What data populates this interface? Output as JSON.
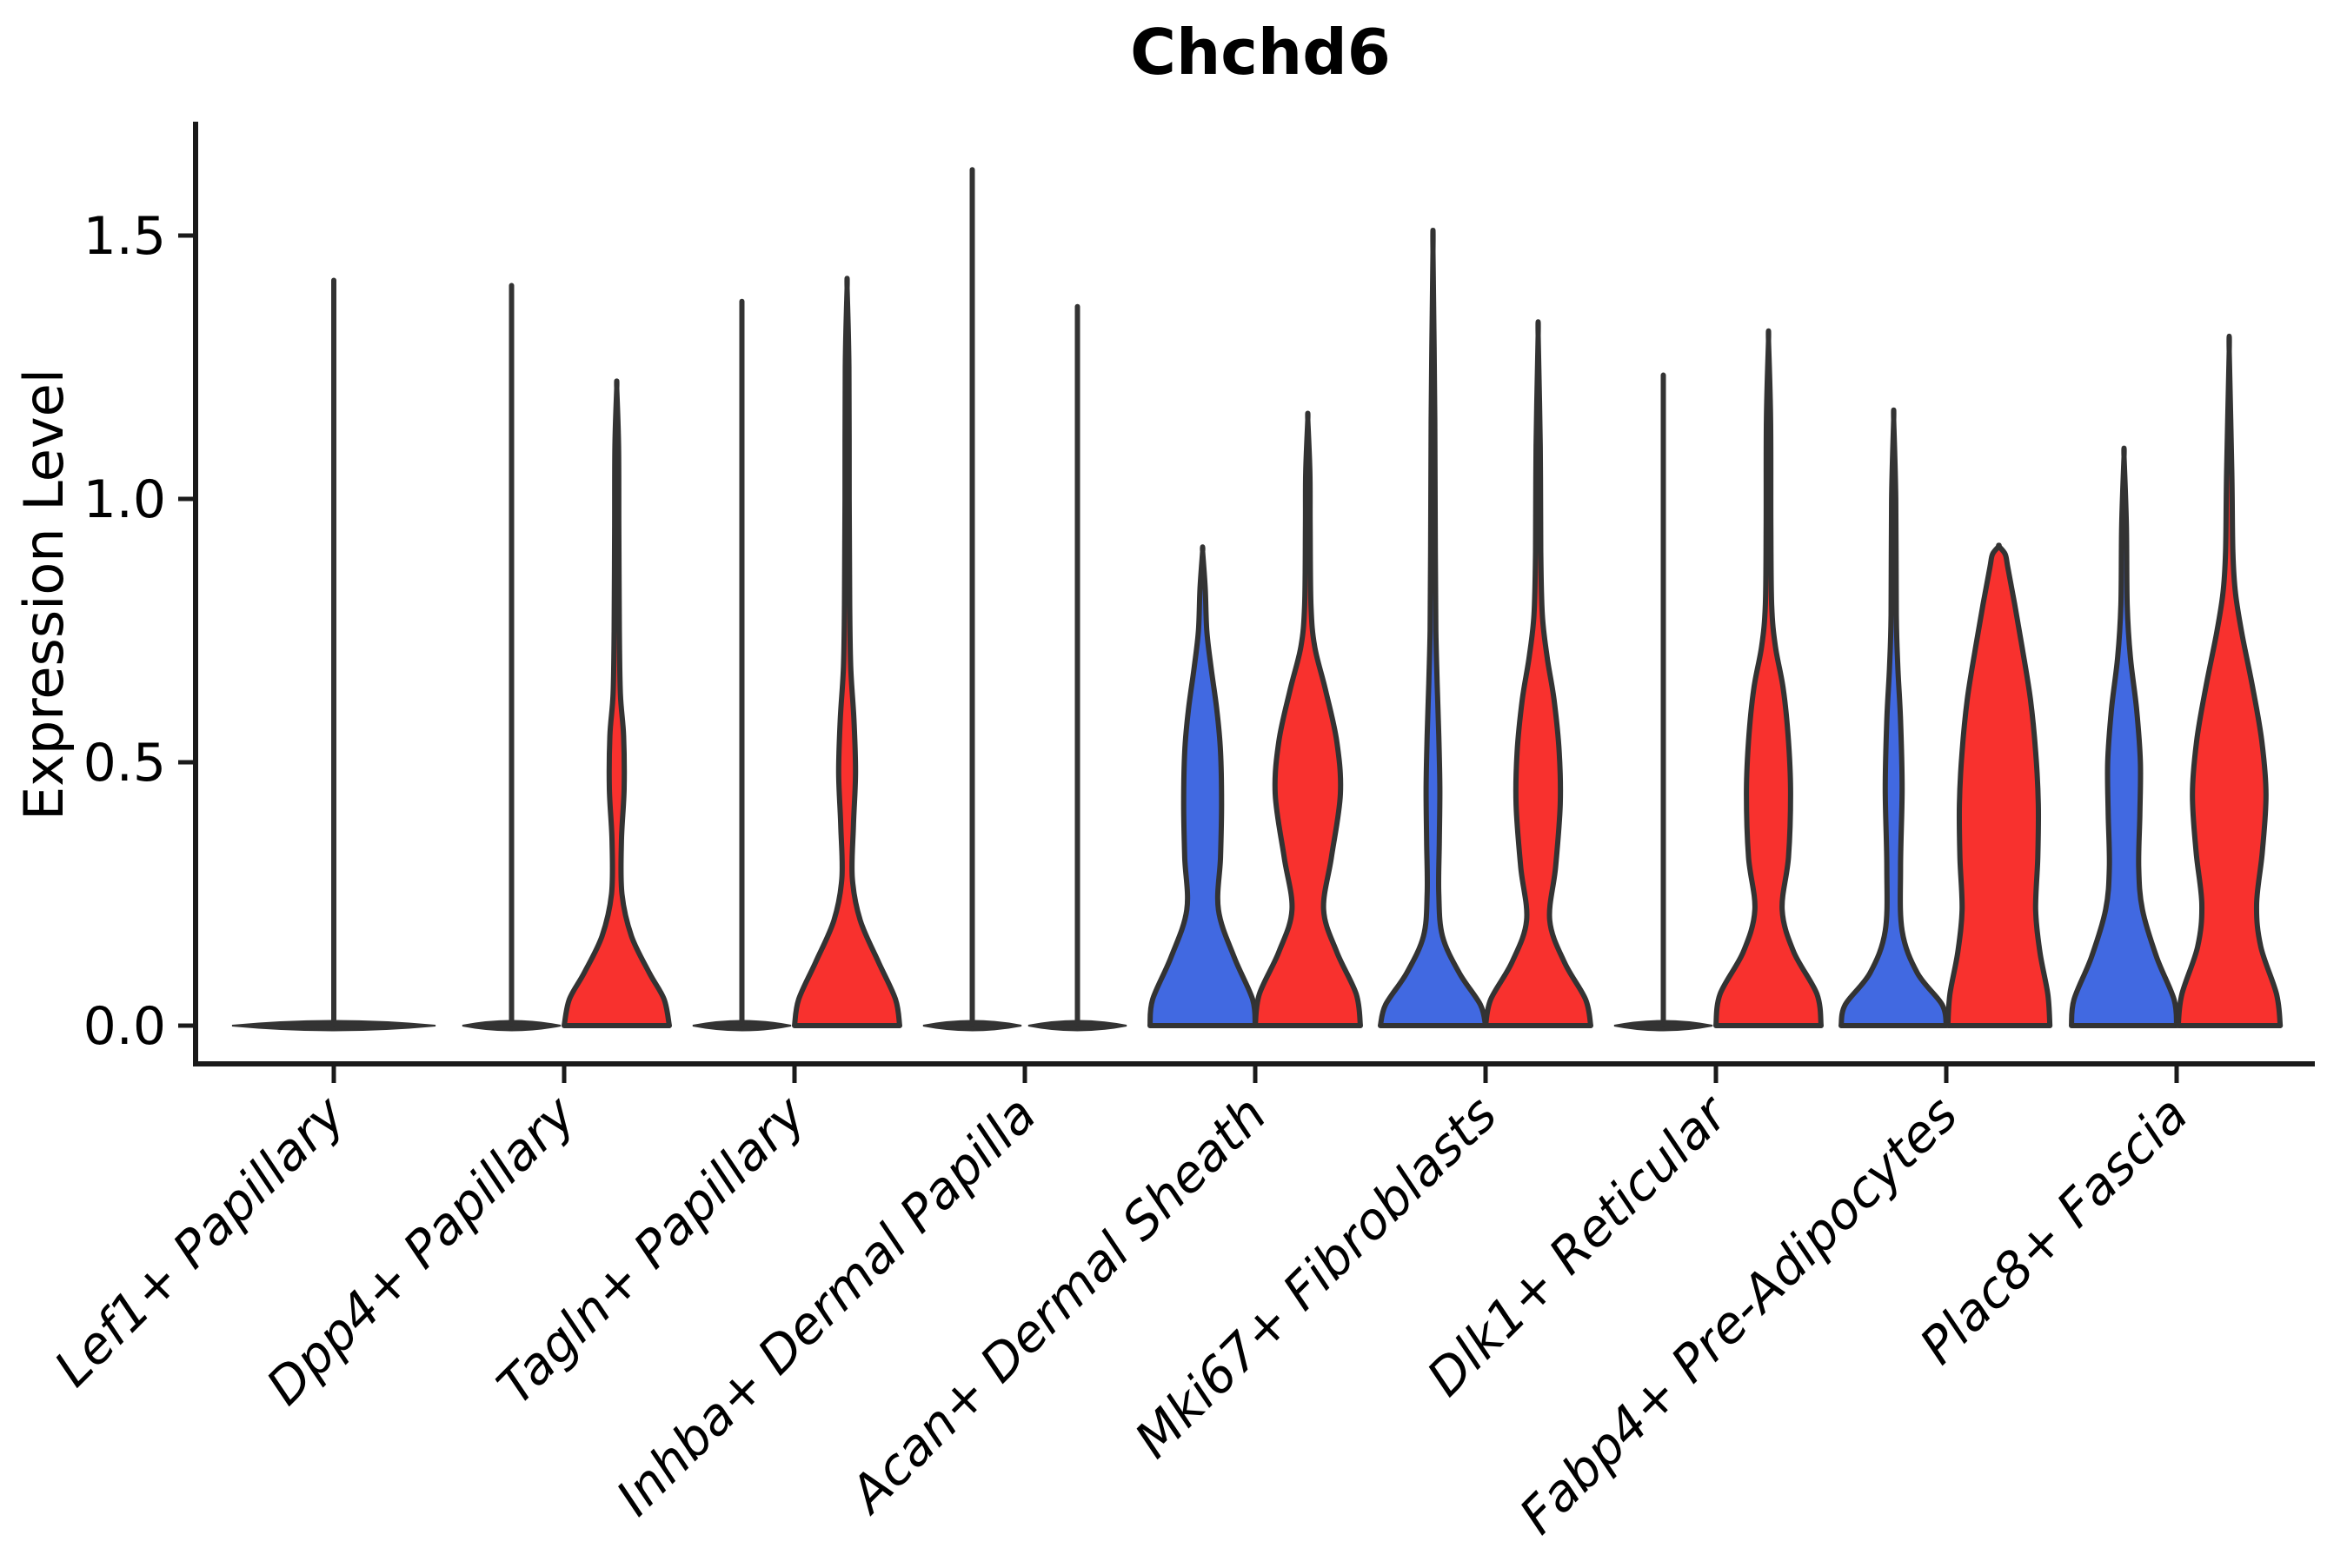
{
  "title": "Chchd6",
  "y_axis": {
    "label": "Expression Level"
  },
  "colors": {
    "blue": "#4169E1",
    "red": "#F8312E",
    "outline": "#333333",
    "axis": "#1a1a1a"
  },
  "chart_data": {
    "type": "violin",
    "title": "Chchd6",
    "xlabel": "",
    "ylabel": "Expression Level",
    "ylim": [
      0,
      1.7
    ],
    "yticks": [
      0.0,
      0.5,
      1.0,
      1.5
    ],
    "ytick_labels": [
      "0.0",
      "0.5",
      "1.0",
      "1.5"
    ],
    "legend": "none",
    "grid": false,
    "series": [
      {
        "name": "group-blue",
        "color": "#4169E1",
        "position": "left"
      },
      {
        "name": "group-red",
        "color": "#F8312E",
        "position": "right"
      }
    ],
    "categories": [
      "Lef1+ Papillary",
      "Dpp4+ Papillary",
      "Tagln+ Papillary",
      "Inhba+ Dermal Papilla",
      "Acan+ Dermal Sheath",
      "Mki67+ Fibroblasts",
      "Dlk1+ Reticular",
      "Fabp4+ Pre-Adipocytes",
      "Plac8+ Fascia"
    ],
    "groups": [
      {
        "category": "Lef1+ Papillary",
        "violins": [
          {
            "side": "center",
            "color": "none",
            "style": "flat-spike",
            "max": 1.42,
            "span": "full"
          }
        ]
      },
      {
        "category": "Dpp4+ Papillary",
        "violins": [
          {
            "side": "left",
            "color": "blue",
            "style": "flat-spike",
            "max": 1.41
          },
          {
            "side": "right",
            "color": "red",
            "style": "density",
            "max": 1.21,
            "profile": [
              [
                0,
                1.0
              ],
              [
                0.05,
                0.9
              ],
              [
                0.1,
                0.62
              ],
              [
                0.17,
                0.28
              ],
              [
                0.25,
                0.1
              ],
              [
                0.35,
                0.09
              ],
              [
                0.45,
                0.14
              ],
              [
                0.55,
                0.13
              ],
              [
                0.63,
                0.07
              ],
              [
                0.75,
                0.05
              ],
              [
                0.95,
                0.04
              ],
              [
                1.1,
                0.035
              ],
              [
                1.21,
                0
              ]
            ]
          }
        ]
      },
      {
        "category": "Tagln+ Papillary",
        "violins": [
          {
            "side": "left",
            "color": "blue",
            "style": "flat-spike",
            "max": 1.38
          },
          {
            "side": "right",
            "color": "red",
            "style": "density",
            "max": 1.4,
            "profile": [
              [
                0,
                1.0
              ],
              [
                0.05,
                0.92
              ],
              [
                0.12,
                0.6
              ],
              [
                0.2,
                0.25
              ],
              [
                0.28,
                0.1
              ],
              [
                0.38,
                0.12
              ],
              [
                0.48,
                0.16
              ],
              [
                0.58,
                0.13
              ],
              [
                0.68,
                0.07
              ],
              [
                0.8,
                0.05
              ],
              [
                1.0,
                0.04
              ],
              [
                1.25,
                0.035
              ],
              [
                1.4,
                0
              ]
            ]
          }
        ]
      },
      {
        "category": "Inhba+ Dermal Papilla",
        "violins": [
          {
            "side": "left",
            "color": "blue",
            "style": "flat-spike",
            "max": 1.63
          },
          {
            "side": "right",
            "color": "red",
            "style": "flat-spike",
            "max": 1.37
          }
        ]
      },
      {
        "category": "Acan+ Dermal Sheath",
        "violins": [
          {
            "side": "left",
            "color": "blue",
            "style": "density",
            "max": 0.9,
            "profile": [
              [
                0,
                1.0
              ],
              [
                0.05,
                0.95
              ],
              [
                0.13,
                0.6
              ],
              [
                0.22,
                0.3
              ],
              [
                0.32,
                0.34
              ],
              [
                0.42,
                0.36
              ],
              [
                0.52,
                0.34
              ],
              [
                0.6,
                0.27
              ],
              [
                0.68,
                0.16
              ],
              [
                0.75,
                0.08
              ],
              [
                0.83,
                0.05
              ],
              [
                0.9,
                0
              ]
            ]
          },
          {
            "side": "right",
            "color": "red",
            "style": "density",
            "max": 1.15,
            "profile": [
              [
                0,
                1.0
              ],
              [
                0.06,
                0.92
              ],
              [
                0.14,
                0.55
              ],
              [
                0.22,
                0.3
              ],
              [
                0.32,
                0.45
              ],
              [
                0.44,
                0.62
              ],
              [
                0.54,
                0.55
              ],
              [
                0.64,
                0.33
              ],
              [
                0.72,
                0.13
              ],
              [
                0.8,
                0.06
              ],
              [
                0.95,
                0.045
              ],
              [
                1.05,
                0.04
              ],
              [
                1.15,
                0
              ]
            ]
          }
        ]
      },
      {
        "category": "Mki67+ Fibroblasts",
        "violins": [
          {
            "side": "left",
            "color": "blue",
            "style": "density",
            "max": 1.47,
            "profile": [
              [
                0,
                1.0
              ],
              [
                0.04,
                0.9
              ],
              [
                0.1,
                0.5
              ],
              [
                0.17,
                0.18
              ],
              [
                0.25,
                0.11
              ],
              [
                0.35,
                0.12
              ],
              [
                0.45,
                0.13
              ],
              [
                0.55,
                0.11
              ],
              [
                0.65,
                0.08
              ],
              [
                0.75,
                0.055
              ],
              [
                0.9,
                0.045
              ],
              [
                1.15,
                0.035
              ],
              [
                1.47,
                0
              ]
            ]
          },
          {
            "side": "right",
            "color": "red",
            "style": "density",
            "max": 1.31,
            "profile": [
              [
                0,
                1.0
              ],
              [
                0.05,
                0.9
              ],
              [
                0.12,
                0.5
              ],
              [
                0.2,
                0.22
              ],
              [
                0.3,
                0.33
              ],
              [
                0.42,
                0.42
              ],
              [
                0.52,
                0.4
              ],
              [
                0.62,
                0.3
              ],
              [
                0.7,
                0.17
              ],
              [
                0.78,
                0.08
              ],
              [
                0.9,
                0.05
              ],
              [
                1.1,
                0.04
              ],
              [
                1.31,
                0
              ]
            ]
          }
        ]
      },
      {
        "category": "Dlk1+ Reticular",
        "violins": [
          {
            "side": "left",
            "color": "blue",
            "style": "flat-spike",
            "max": 1.24
          },
          {
            "side": "right",
            "color": "red",
            "style": "density",
            "max": 1.3,
            "profile": [
              [
                0,
                1.0
              ],
              [
                0.06,
                0.92
              ],
              [
                0.14,
                0.48
              ],
              [
                0.22,
                0.26
              ],
              [
                0.32,
                0.38
              ],
              [
                0.44,
                0.42
              ],
              [
                0.54,
                0.38
              ],
              [
                0.64,
                0.28
              ],
              [
                0.72,
                0.13
              ],
              [
                0.8,
                0.06
              ],
              [
                0.95,
                0.045
              ],
              [
                1.15,
                0.04
              ],
              [
                1.3,
                0
              ]
            ]
          }
        ]
      },
      {
        "category": "Fabp4+ Pre-Adipocytes",
        "violins": [
          {
            "side": "left",
            "color": "blue",
            "style": "density",
            "max": 1.15,
            "profile": [
              [
                0,
                1.0
              ],
              [
                0.04,
                0.92
              ],
              [
                0.1,
                0.45
              ],
              [
                0.18,
                0.16
              ],
              [
                0.3,
                0.13
              ],
              [
                0.45,
                0.16
              ],
              [
                0.58,
                0.13
              ],
              [
                0.68,
                0.08
              ],
              [
                0.78,
                0.05
              ],
              [
                1.0,
                0.04
              ],
              [
                1.15,
                0
              ]
            ]
          },
          {
            "side": "right",
            "color": "red",
            "style": "density",
            "max": 0.91,
            "profile": [
              [
                0,
                0.97
              ],
              [
                0.06,
                0.93
              ],
              [
                0.14,
                0.78
              ],
              [
                0.22,
                0.7
              ],
              [
                0.32,
                0.74
              ],
              [
                0.42,
                0.75
              ],
              [
                0.52,
                0.7
              ],
              [
                0.62,
                0.6
              ],
              [
                0.72,
                0.44
              ],
              [
                0.8,
                0.3
              ],
              [
                0.87,
                0.17
              ],
              [
                0.895,
                0.12
              ],
              [
                0.91,
                0
              ]
            ]
          }
        ]
      },
      {
        "category": "Plac8+ Fascia",
        "violins": [
          {
            "side": "left",
            "color": "blue",
            "style": "density",
            "max": 1.08,
            "profile": [
              [
                0,
                1.0
              ],
              [
                0.05,
                0.95
              ],
              [
                0.13,
                0.62
              ],
              [
                0.22,
                0.35
              ],
              [
                0.3,
                0.28
              ],
              [
                0.4,
                0.3
              ],
              [
                0.5,
                0.31
              ],
              [
                0.6,
                0.24
              ],
              [
                0.7,
                0.12
              ],
              [
                0.8,
                0.06
              ],
              [
                0.95,
                0.045
              ],
              [
                1.08,
                0
              ]
            ]
          },
          {
            "side": "right",
            "color": "red",
            "style": "density",
            "max": 1.28,
            "profile": [
              [
                0,
                0.97
              ],
              [
                0.06,
                0.9
              ],
              [
                0.15,
                0.6
              ],
              [
                0.23,
                0.52
              ],
              [
                0.33,
                0.63
              ],
              [
                0.44,
                0.7
              ],
              [
                0.54,
                0.62
              ],
              [
                0.64,
                0.45
              ],
              [
                0.74,
                0.25
              ],
              [
                0.82,
                0.12
              ],
              [
                0.9,
                0.07
              ],
              [
                1.05,
                0.05
              ],
              [
                1.28,
                0
              ]
            ]
          }
        ]
      }
    ]
  }
}
